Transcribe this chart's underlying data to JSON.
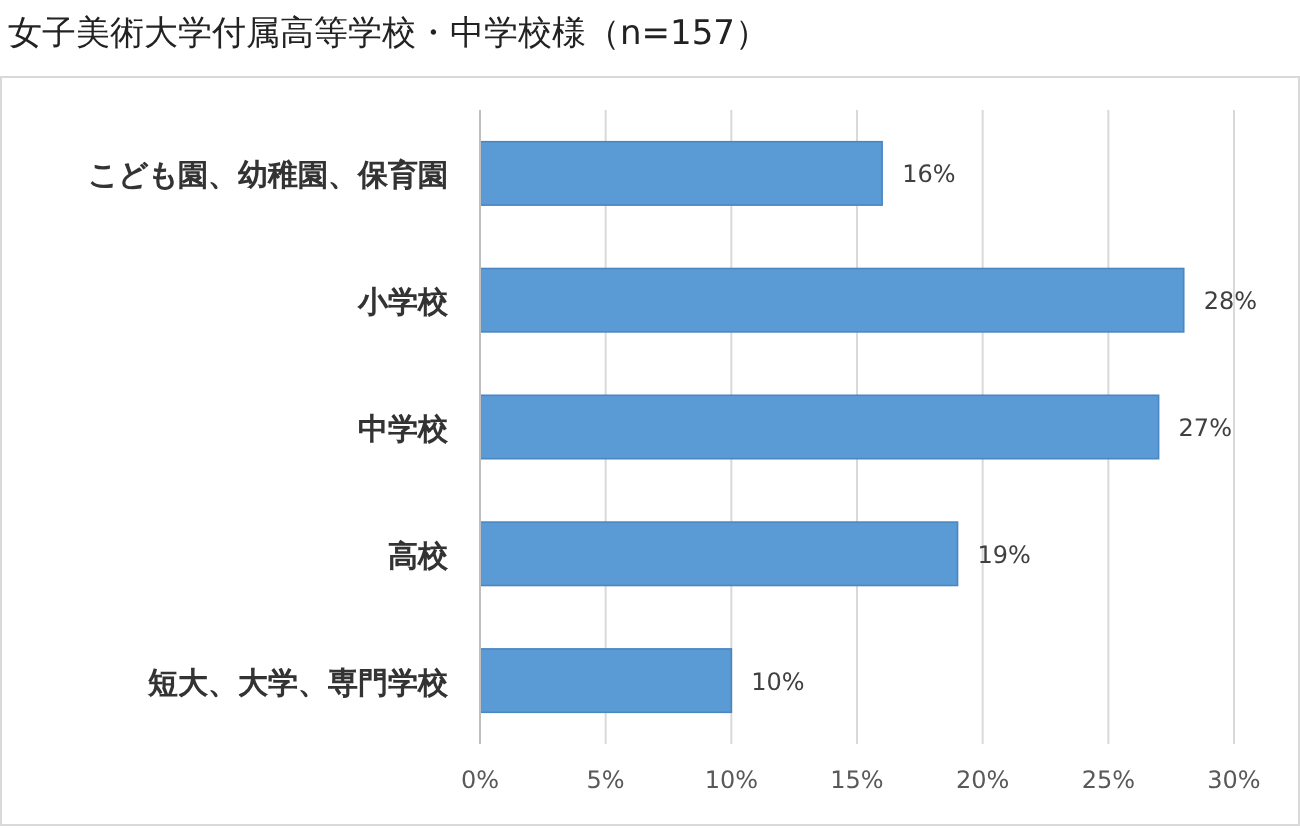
{
  "chart_data": {
    "type": "bar",
    "orientation": "horizontal",
    "title": "女子美術大学付属高等学校・中学校様（n=157）",
    "categories": [
      "こども園、幼稚園、保育園",
      "小学校",
      "中学校",
      "高校",
      "短大、大学、専門学校"
    ],
    "values": [
      16,
      28,
      27,
      19,
      10
    ],
    "color": "#5b9bd5",
    "data_labels": true,
    "value_labels": [
      "16%",
      "28%",
      "27%",
      "19%",
      "10%"
    ],
    "xlim": [
      0,
      30
    ],
    "xticks": [
      {
        "value": 0,
        "label": "0%"
      },
      {
        "value": 5,
        "label": "5%"
      },
      {
        "value": 10,
        "label": "10%"
      },
      {
        "value": 15,
        "label": "15%"
      },
      {
        "value": 20,
        "label": "20%"
      },
      {
        "value": 25,
        "label": "25%"
      },
      {
        "value": 30,
        "label": "30%"
      }
    ],
    "grid": "x"
  }
}
